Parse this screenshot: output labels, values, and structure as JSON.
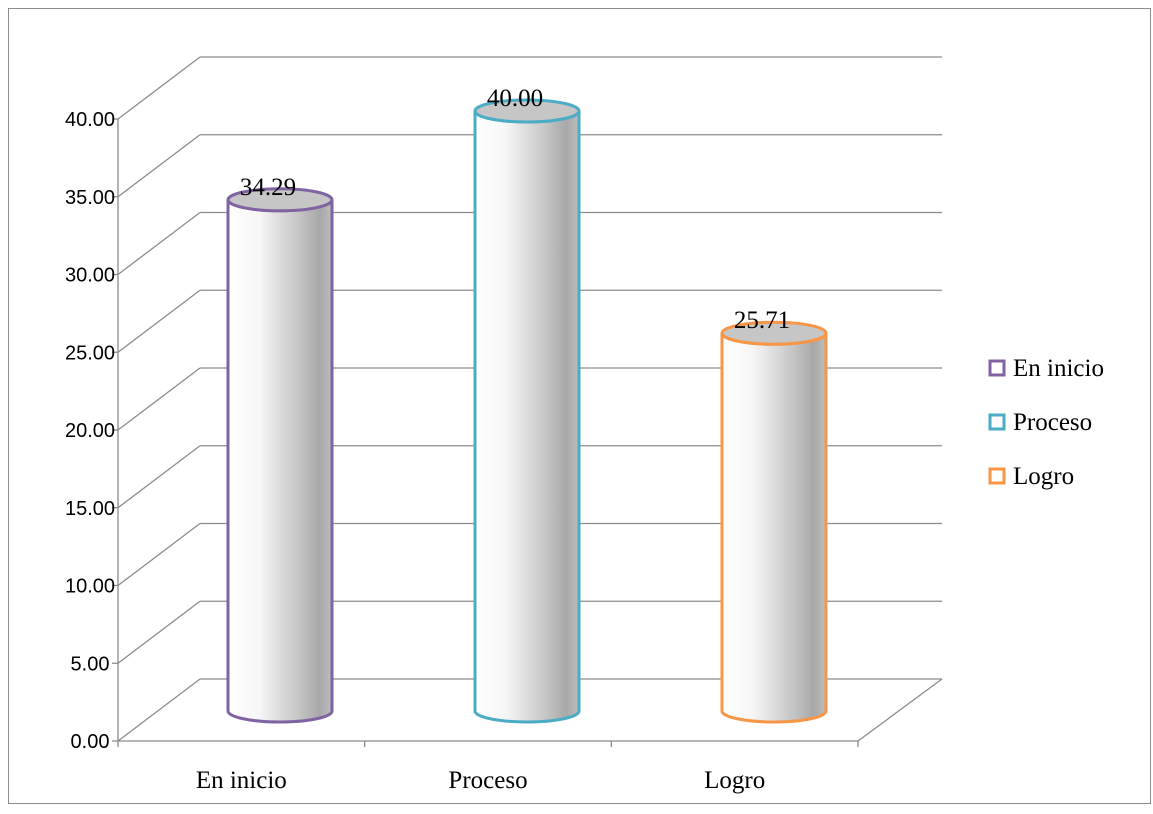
{
  "chart_data": {
    "type": "bar",
    "style": "3d-cylinder",
    "categories": [
      "En inicio",
      "Proceso",
      "Logro"
    ],
    "values": [
      34.29,
      40.0,
      25.71
    ],
    "value_labels": [
      "34.29",
      "40.00",
      "25.71"
    ],
    "colors": [
      "#8064a2",
      "#4bacc6",
      "#f79646"
    ],
    "ylim": [
      0,
      40
    ],
    "y_ticks": [
      0,
      5,
      10,
      15,
      20,
      25,
      30,
      35,
      40
    ],
    "y_tick_labels": [
      "0.00",
      "5.00",
      "10.00",
      "15.00",
      "20.00",
      "25.00",
      "30.00",
      "35.00",
      "40.00"
    ],
    "grid": true,
    "legend": {
      "position": "right",
      "entries": [
        "En inicio",
        "Proceso",
        "Logro"
      ]
    }
  }
}
